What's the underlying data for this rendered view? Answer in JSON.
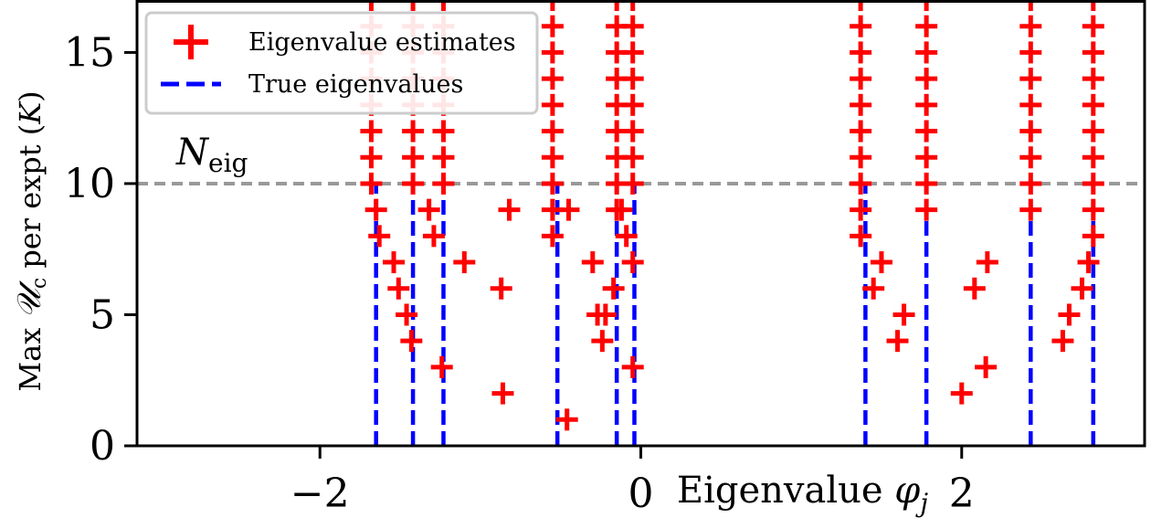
{
  "chart_data": {
    "type": "scatter",
    "title": "",
    "xlabel": "Eigenvalue φ_j",
    "ylabel": "Max 𝒰c per expt (K)",
    "xlabel_parts": {
      "text": "Eigenvalue ",
      "symbol": "φ",
      "sub": "j"
    },
    "ylabel_parts": {
      "pre": "Max ",
      "symbol": "𝒰",
      "sub": "c",
      "post": " per expt (",
      "var": "K",
      "close": ")"
    },
    "xlim": [
      -3.14,
      3.14
    ],
    "ylim": [
      0,
      17
    ],
    "xticks": [
      -2,
      0,
      2
    ],
    "xtick_labels": [
      "−2",
      "0",
      "2"
    ],
    "yticks": [
      0,
      5,
      10,
      15
    ],
    "ytick_labels": [
      "0",
      "5",
      "10",
      "15"
    ],
    "grid": false,
    "legend_position": "top-left",
    "hline": {
      "y": 10,
      "label": "N_eig",
      "label_parts": {
        "symbol": "N",
        "sub": "eig"
      },
      "color": "#999999"
    },
    "true_eigenvalues": [
      -1.65,
      -1.42,
      -1.23,
      -0.52,
      -0.15,
      -0.04,
      1.4,
      1.78,
      2.43,
      2.82
    ],
    "series": [
      {
        "name": "Eigenvalue estimates",
        "color": "#ff0000",
        "marker": "plus",
        "points": [
          [
            -1.65,
            9
          ],
          [
            -1.68,
            10
          ],
          [
            -1.68,
            11
          ],
          [
            -1.68,
            12
          ],
          [
            -1.68,
            13
          ],
          [
            -1.68,
            14
          ],
          [
            -1.68,
            15
          ],
          [
            -1.68,
            16
          ],
          [
            -1.68,
            17
          ],
          [
            -1.42,
            10
          ],
          [
            -1.42,
            11
          ],
          [
            -1.42,
            12
          ],
          [
            -1.42,
            13
          ],
          [
            -1.42,
            14
          ],
          [
            -1.42,
            15
          ],
          [
            -1.42,
            16
          ],
          [
            -1.42,
            17
          ],
          [
            -1.23,
            10
          ],
          [
            -1.23,
            11
          ],
          [
            -1.23,
            12
          ],
          [
            -1.23,
            13
          ],
          [
            -1.23,
            14
          ],
          [
            -1.23,
            15
          ],
          [
            -1.23,
            16
          ],
          [
            -1.23,
            17
          ],
          [
            -0.55,
            8
          ],
          [
            -0.55,
            9
          ],
          [
            -0.55,
            10
          ],
          [
            -0.55,
            11
          ],
          [
            -0.55,
            12
          ],
          [
            -0.55,
            13
          ],
          [
            -0.55,
            14
          ],
          [
            -0.55,
            15
          ],
          [
            -0.55,
            16
          ],
          [
            -0.55,
            17
          ],
          [
            -0.15,
            9
          ],
          [
            -0.15,
            10
          ],
          [
            -0.15,
            11
          ],
          [
            -0.15,
            12
          ],
          [
            -0.15,
            13
          ],
          [
            -0.15,
            14
          ],
          [
            -0.15,
            15
          ],
          [
            -0.15,
            16
          ],
          [
            -0.15,
            17
          ],
          [
            -0.05,
            10
          ],
          [
            -0.05,
            11
          ],
          [
            -0.05,
            12
          ],
          [
            -0.05,
            13
          ],
          [
            -0.05,
            14
          ],
          [
            -0.05,
            15
          ],
          [
            -0.05,
            16
          ],
          [
            -0.05,
            17
          ],
          [
            1.37,
            8
          ],
          [
            1.37,
            9
          ],
          [
            1.37,
            10
          ],
          [
            1.37,
            11
          ],
          [
            1.37,
            12
          ],
          [
            1.37,
            13
          ],
          [
            1.37,
            14
          ],
          [
            1.37,
            15
          ],
          [
            1.37,
            16
          ],
          [
            1.37,
            17
          ],
          [
            1.78,
            9
          ],
          [
            1.78,
            10
          ],
          [
            1.78,
            11
          ],
          [
            1.78,
            12
          ],
          [
            1.78,
            13
          ],
          [
            1.78,
            14
          ],
          [
            1.78,
            15
          ],
          [
            1.78,
            16
          ],
          [
            1.78,
            17
          ],
          [
            2.43,
            9
          ],
          [
            2.43,
            10
          ],
          [
            2.43,
            11
          ],
          [
            2.43,
            12
          ],
          [
            2.43,
            13
          ],
          [
            2.43,
            14
          ],
          [
            2.43,
            15
          ],
          [
            2.43,
            16
          ],
          [
            2.43,
            17
          ],
          [
            2.82,
            8
          ],
          [
            2.82,
            9
          ],
          [
            2.82,
            10
          ],
          [
            2.82,
            11
          ],
          [
            2.82,
            12
          ],
          [
            2.82,
            13
          ],
          [
            2.82,
            14
          ],
          [
            2.82,
            15
          ],
          [
            2.82,
            16
          ],
          [
            2.82,
            17
          ],
          [
            -1.63,
            8
          ],
          [
            -1.54,
            7
          ],
          [
            -1.51,
            6
          ],
          [
            -1.46,
            5
          ],
          [
            -1.43,
            4
          ],
          [
            -1.32,
            9
          ],
          [
            -1.29,
            8
          ],
          [
            -1.24,
            3
          ],
          [
            -1.1,
            7
          ],
          [
            -0.86,
            2
          ],
          [
            -0.87,
            6
          ],
          [
            -0.82,
            9
          ],
          [
            -0.46,
            1
          ],
          [
            -0.45,
            9
          ],
          [
            -0.3,
            7
          ],
          [
            -0.27,
            5
          ],
          [
            -0.24,
            4
          ],
          [
            -0.22,
            5
          ],
          [
            -0.17,
            6
          ],
          [
            -0.12,
            9
          ],
          [
            -0.09,
            8
          ],
          [
            -0.05,
            7
          ],
          [
            -0.05,
            3
          ],
          [
            1.45,
            6
          ],
          [
            1.5,
            7
          ],
          [
            1.6,
            4
          ],
          [
            1.64,
            5
          ],
          [
            2.0,
            2
          ],
          [
            2.08,
            6
          ],
          [
            2.15,
            3
          ],
          [
            2.16,
            7
          ],
          [
            2.63,
            4
          ],
          [
            2.67,
            5
          ],
          [
            2.75,
            6
          ],
          [
            2.79,
            7
          ]
        ]
      },
      {
        "name": "True eigenvalues",
        "color": "#0000ff",
        "style": "dashed-vertical"
      }
    ]
  }
}
